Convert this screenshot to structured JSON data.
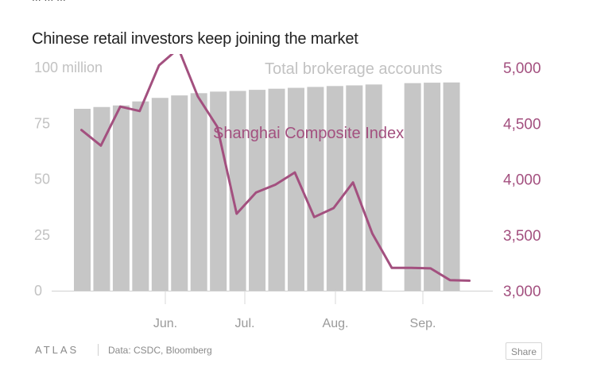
{
  "page": {
    "clipped_top_text": "... ... ...",
    "title": "Chinese retail investors keep joining the market",
    "footer": {
      "logo": "ATLAS",
      "source": "Data: CSDC, Bloomberg",
      "share_label": "Share"
    }
  },
  "colors": {
    "bars": "#c6c6c6",
    "line": "#a3507f",
    "left_axis_text": "#c2c2c2",
    "right_axis_text": "#a3507f",
    "x_axis_text": "#9a9a9a"
  },
  "chart_data": {
    "type": "bar+line",
    "title": "Chinese retail investors keep joining the market",
    "x_tick_labels": [
      "Jun.",
      "Jul.",
      "Aug.",
      "Sep."
    ],
    "series": [
      {
        "name": "Total brokerage accounts",
        "type": "bar",
        "axis": "left",
        "unit": "million",
        "values": [
          81.5,
          82.3,
          83.0,
          84.8,
          86.4,
          87.5,
          88.5,
          89.2,
          89.5,
          90.0,
          90.5,
          90.9,
          91.3,
          91.7,
          92.0,
          92.4,
          null,
          93.0,
          93.2,
          93.3
        ]
      },
      {
        "name": "Shanghai Composite Index",
        "type": "line",
        "axis": "right",
        "values": [
          4440,
          4300,
          4650,
          4610,
          5020,
          5170,
          4740,
          4470,
          3690,
          3880,
          3950,
          4060,
          3660,
          3740,
          3970,
          3510,
          3205,
          3205,
          3200,
          3095,
          3090
        ]
      }
    ],
    "left_axis": {
      "ticks": [
        0,
        25,
        50,
        75,
        100
      ],
      "tick_labels": [
        "0",
        "25",
        "50",
        "75",
        "100 million"
      ],
      "ylim": [
        0,
        100
      ]
    },
    "right_axis": {
      "ticks": [
        3000,
        3500,
        4000,
        4500,
        5000
      ],
      "tick_labels": [
        "3,000",
        "3,500",
        "4,000",
        "4,500",
        "5,000"
      ],
      "ylim": [
        3000,
        5000
      ]
    },
    "annotations": [
      {
        "text": "Total brokerage accounts",
        "series": "Total brokerage accounts"
      },
      {
        "text": "Shanghai Composite Index",
        "series": "Shanghai Composite Index"
      }
    ],
    "grid": false
  }
}
